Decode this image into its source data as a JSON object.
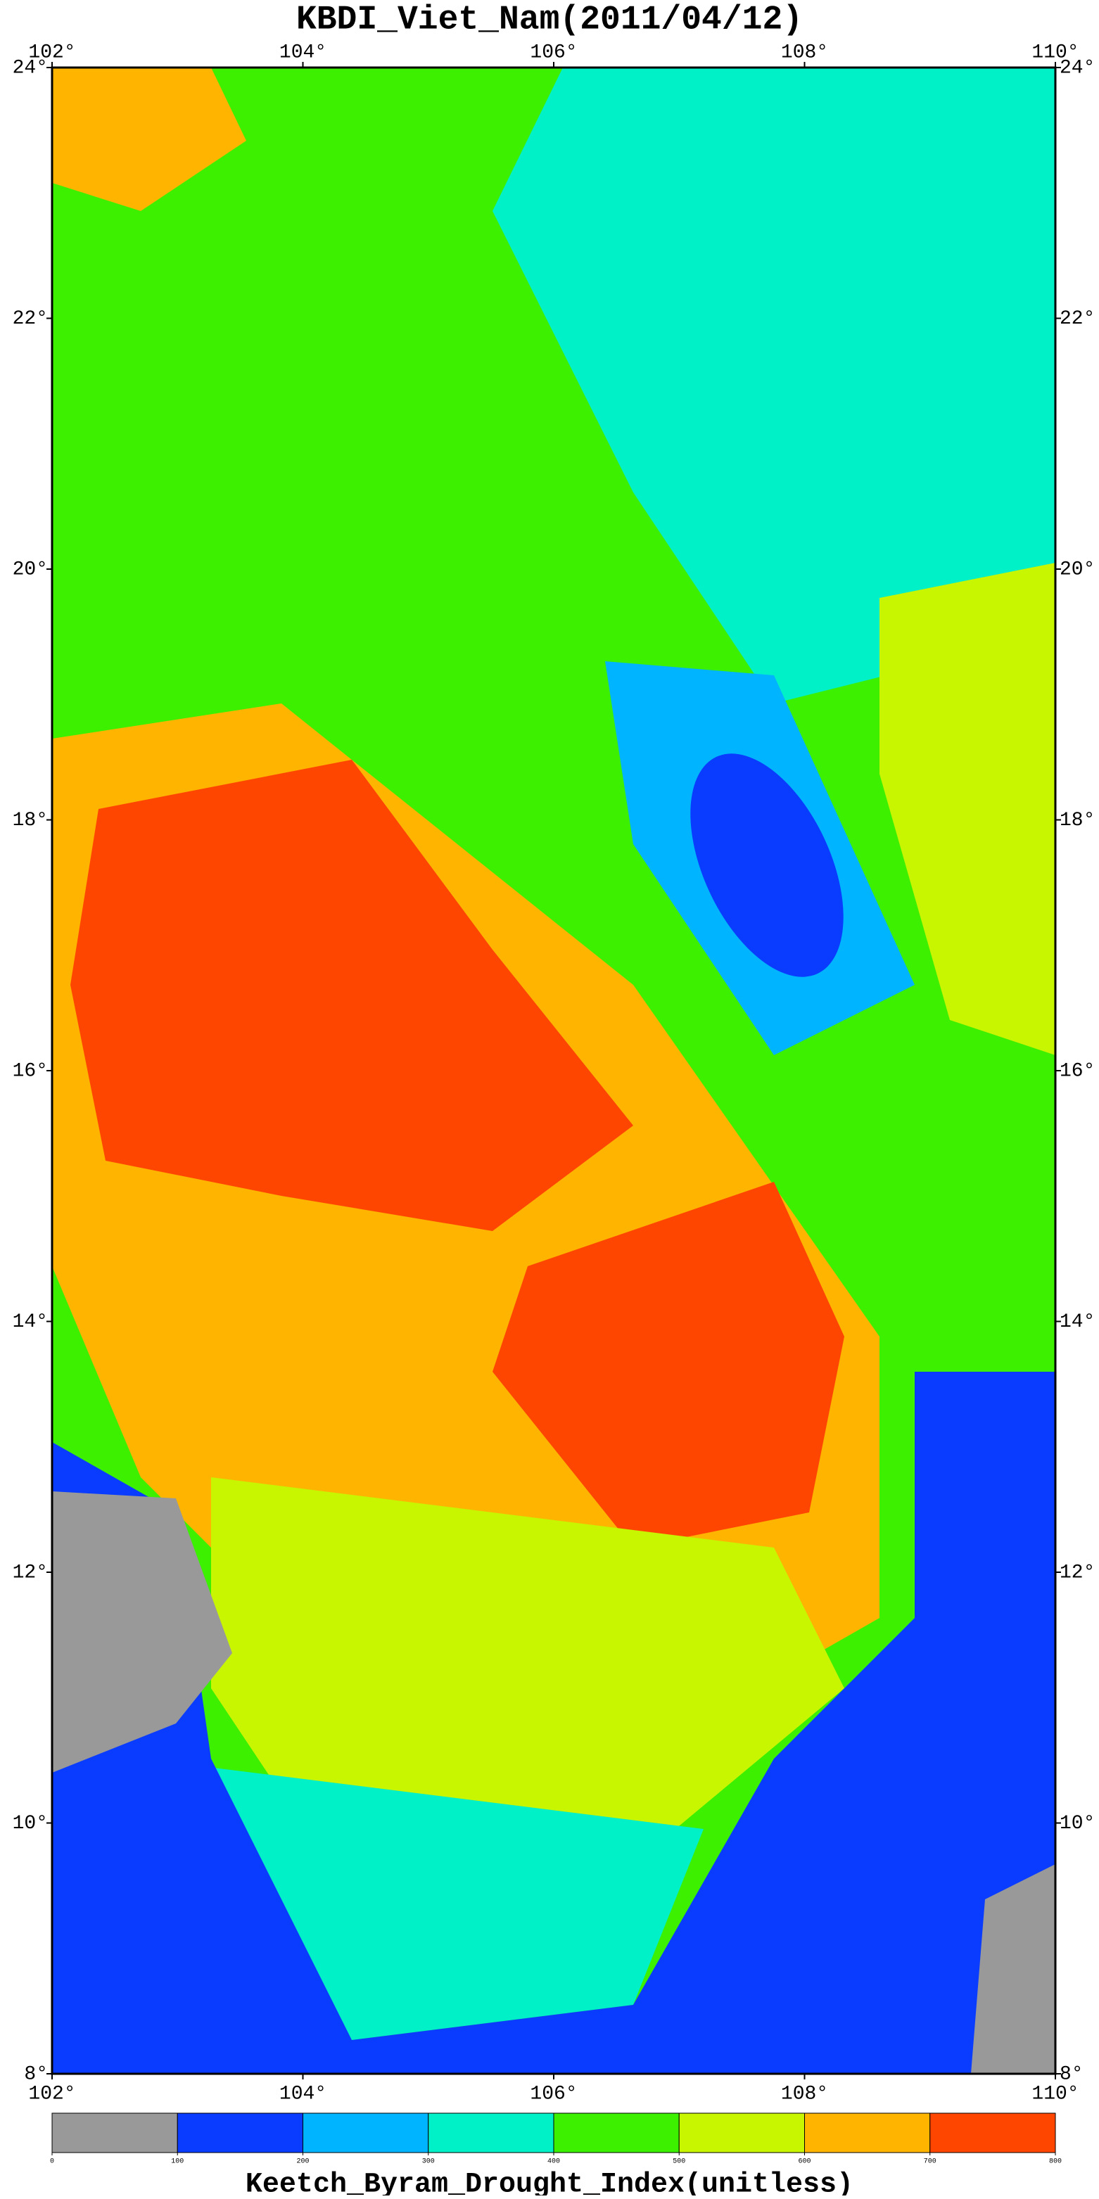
{
  "chart_data": {
    "type": "heatmap",
    "title": "KBDI_Viet_Nam(2011/04/12)",
    "xlim": [
      102,
      110
    ],
    "ylim": [
      8,
      24
    ],
    "xticks": [
      {
        "value": 102,
        "label": "102°"
      },
      {
        "value": 104,
        "label": "104°"
      },
      {
        "value": 106,
        "label": "106°"
      },
      {
        "value": 108,
        "label": "108°"
      },
      {
        "value": 110,
        "label": "110°"
      }
    ],
    "yticks": [
      {
        "value": 8,
        "label": "8°"
      },
      {
        "value": 10,
        "label": "10°"
      },
      {
        "value": 12,
        "label": "12°"
      },
      {
        "value": 14,
        "label": "14°"
      },
      {
        "value": 16,
        "label": "16°"
      },
      {
        "value": 18,
        "label": "18°"
      },
      {
        "value": 20,
        "label": "20°"
      },
      {
        "value": 22,
        "label": "22°"
      },
      {
        "value": 24,
        "label": "24°"
      }
    ],
    "colorbar": {
      "ticks": [
        0,
        100,
        200,
        300,
        400,
        500,
        600,
        700,
        800
      ],
      "colors": [
        "#999999",
        "#0a3cff",
        "#00b4ff",
        "#00f0c8",
        "#3cf000",
        "#c8f500",
        "#ffb400",
        "#ff4600"
      ]
    },
    "colorbar_label": "Keetch_Byram_Drought_Index(unitless)"
  }
}
